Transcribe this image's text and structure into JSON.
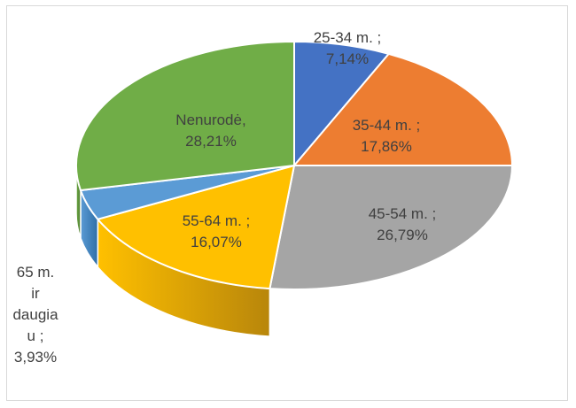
{
  "chart_data": {
    "type": "pie",
    "three_d": true,
    "title": "",
    "legend": "none",
    "slices": [
      {
        "category": "25-34 m.",
        "value": 7.14,
        "label_lines": [
          "25-34 m. ;",
          "7,14%"
        ],
        "color": "#4472C4",
        "side_color": "#2F5597"
      },
      {
        "category": "35-44 m.",
        "value": 17.86,
        "label_lines": [
          "35-44 m. ;",
          "17,86%"
        ],
        "color": "#ED7D31",
        "side_color": "#B45A1E"
      },
      {
        "category": "45-54 m.",
        "value": 26.79,
        "label_lines": [
          "45-54 m. ;",
          "26,79%"
        ],
        "color": "#A5A5A5",
        "side_color": "#4A4A4A"
      },
      {
        "category": "55-64 m.",
        "value": 16.07,
        "label_lines": [
          "55-64 m. ;",
          "16,07%"
        ],
        "color": "#FFC000",
        "side_color": "#B8860B"
      },
      {
        "category": "65 m. ir daugiau",
        "value": 3.93,
        "label_lines": [
          "65 m.",
          "ir",
          "daugia",
          "u ;",
          "3,93%"
        ],
        "color": "#5B9BD5",
        "side_color": "#2E6EA6"
      },
      {
        "category": "Nenurodė",
        "value": 28.21,
        "label_lines": [
          "Nenurodė,",
          "28,21%"
        ],
        "color": "#70AD47",
        "side_color": "#4E7A31"
      }
    ]
  }
}
